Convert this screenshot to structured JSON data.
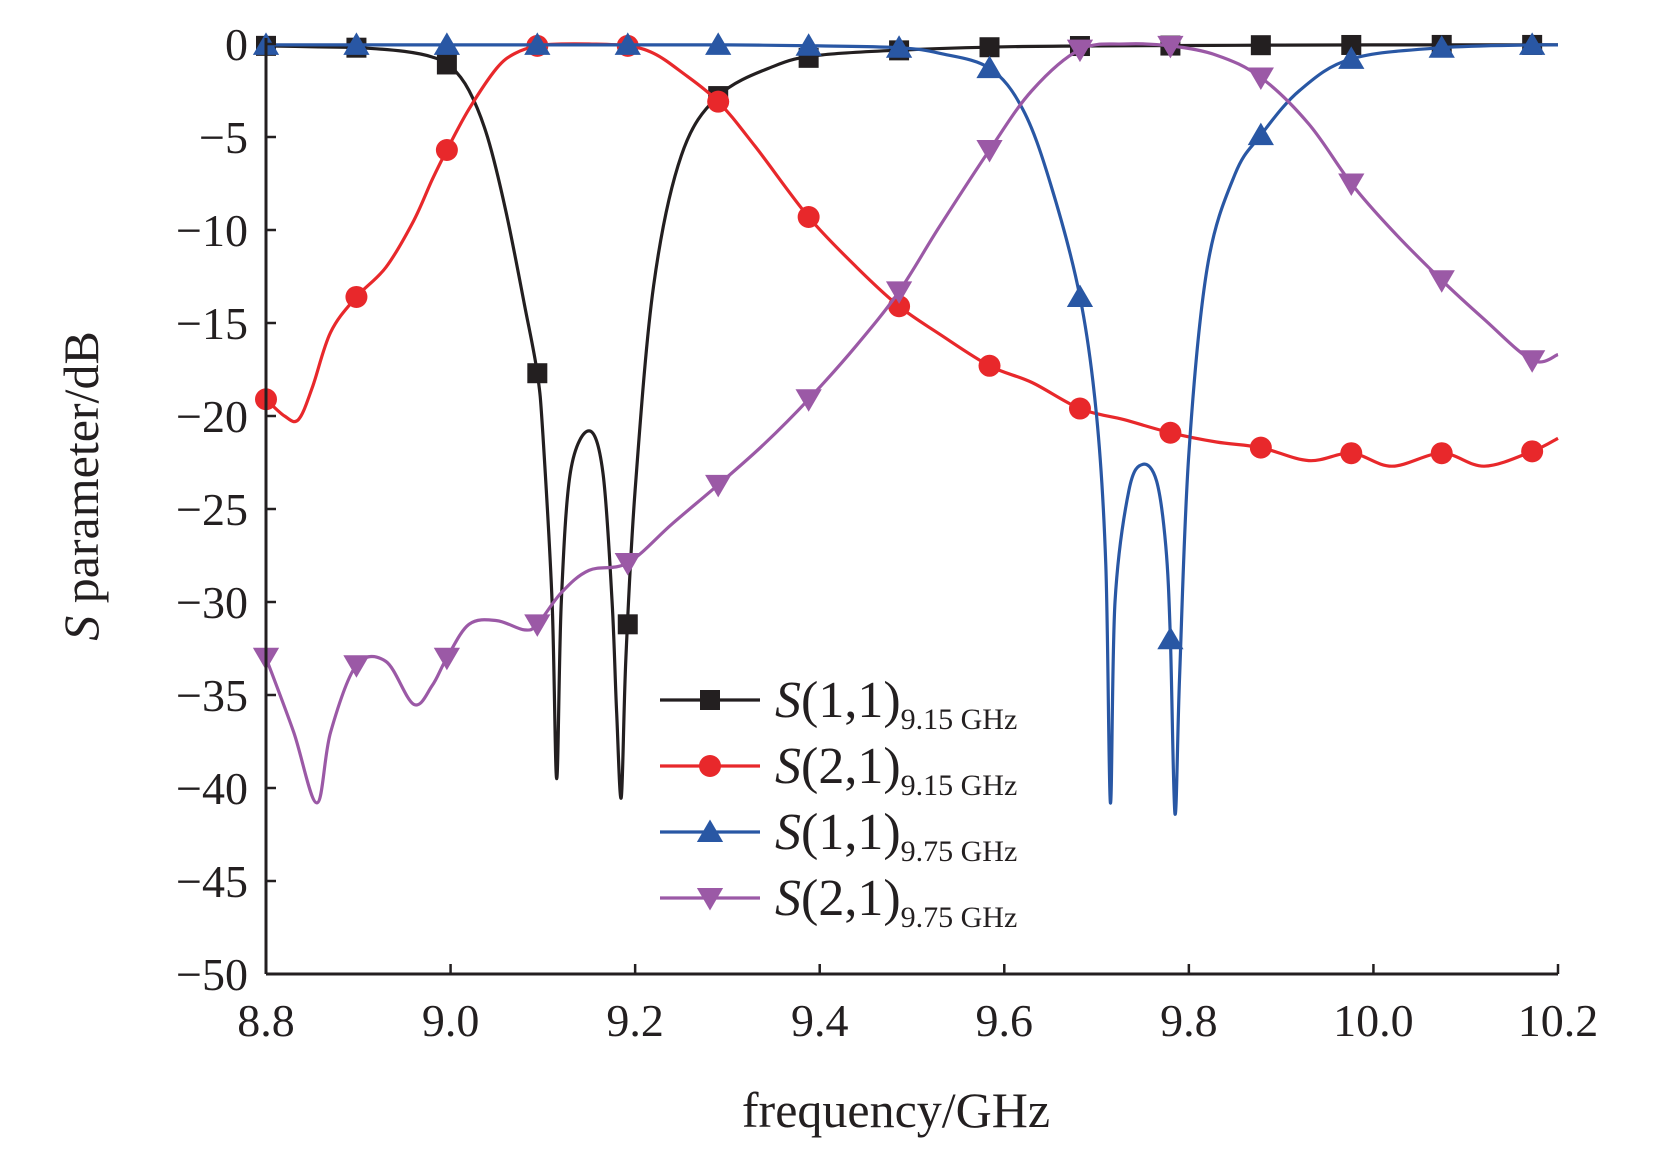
{
  "chart_data": {
    "type": "line",
    "title": "",
    "xlabel": "frequency/GHz",
    "ylabel_prefix": "S",
    "ylabel": " parameter/dB",
    "xlim": [
      8.8,
      10.2
    ],
    "ylim": [
      -50,
      0
    ],
    "xticks": [
      "8.8",
      "9.0",
      "9.2",
      "9.4",
      "9.6",
      "9.8",
      "10.0",
      "10.2"
    ],
    "xtick_values": [
      8.8,
      9.0,
      9.2,
      9.4,
      9.6,
      9.8,
      10.0,
      10.2
    ],
    "yticks": [
      "0",
      "−5",
      "−10",
      "−15",
      "−20",
      "−25",
      "−30",
      "−35",
      "−40",
      "−45",
      "−50"
    ],
    "ytick_values": [
      0,
      -5,
      -10,
      -15,
      -20,
      -25,
      -30,
      -35,
      -40,
      -45,
      -50
    ],
    "grid": false,
    "legend_position": "bottom-center",
    "series": [
      {
        "name": "S(1,1)",
        "name_main": "S(1,1)",
        "name_sub": "9.15 GHz",
        "color": "#231f20",
        "marker": "square",
        "markers_x": [
          8.8,
          8.898,
          8.996,
          9.094,
          9.192,
          9.29,
          9.388,
          9.486,
          9.584,
          9.682,
          9.78,
          9.878,
          9.976,
          10.074,
          10.172
        ],
        "x": [
          8.8,
          8.85,
          8.9,
          8.95,
          8.98,
          9.0,
          9.02,
          9.04,
          9.06,
          9.08,
          9.094,
          9.1,
          9.11,
          9.115,
          9.12,
          9.13,
          9.15,
          9.165,
          9.175,
          9.18,
          9.185,
          9.19,
          9.2,
          9.22,
          9.25,
          9.29,
          9.35,
          9.4,
          9.5,
          9.6,
          9.7,
          9.8,
          9.9,
          10.0,
          10.1,
          10.2
        ],
        "y": [
          -0.1,
          -0.15,
          -0.2,
          -0.4,
          -0.7,
          -1.2,
          -2.5,
          -5,
          -9,
          -14,
          -17.7,
          -21,
          -30,
          -39.5,
          -30,
          -23,
          -20.8,
          -23,
          -30,
          -36,
          -40.5,
          -33,
          -24,
          -13,
          -6,
          -2.8,
          -1.2,
          -0.6,
          -0.3,
          -0.15,
          -0.1,
          -0.08,
          -0.06,
          -0.05,
          -0.05,
          -0.05
        ]
      },
      {
        "name": "S(2,1)",
        "name_main": "S(2,1)",
        "name_sub": "9.15 GHz",
        "color": "#e8282b",
        "marker": "circle",
        "markers_x": [
          8.8,
          8.898,
          8.996,
          9.094,
          9.192,
          9.29,
          9.388,
          9.486,
          9.584,
          9.682,
          9.78,
          9.878,
          9.976,
          10.074,
          10.172
        ],
        "x": [
          8.8,
          8.82,
          8.835,
          8.85,
          8.87,
          8.898,
          8.93,
          8.96,
          8.98,
          8.996,
          9.02,
          9.05,
          9.07,
          9.094,
          9.12,
          9.15,
          9.192,
          9.22,
          9.25,
          9.29,
          9.33,
          9.388,
          9.44,
          9.486,
          9.53,
          9.584,
          9.63,
          9.682,
          9.73,
          9.78,
          9.83,
          9.878,
          9.93,
          9.976,
          10.02,
          10.074,
          10.12,
          10.172,
          10.2
        ],
        "y": [
          -19.1,
          -20,
          -20.2,
          -18.5,
          -15.5,
          -13.6,
          -12,
          -9.5,
          -7.3,
          -5.7,
          -3.5,
          -1.3,
          -0.5,
          -0.1,
          0,
          0,
          -0.1,
          -0.5,
          -1.5,
          -3.1,
          -5.5,
          -9.3,
          -12,
          -14.1,
          -15.6,
          -17.3,
          -18.2,
          -19.6,
          -20.2,
          -20.9,
          -21.4,
          -21.7,
          -22.4,
          -22,
          -22.7,
          -22,
          -22.7,
          -21.9,
          -21.2
        ]
      },
      {
        "name": "S(1,1)",
        "name_main": "S(1,1)",
        "name_sub": "9.75 GHz",
        "color": "#2957a4",
        "marker": "triangle-up",
        "markers_x": [
          8.8,
          8.898,
          8.996,
          9.094,
          9.192,
          9.29,
          9.388,
          9.486,
          9.584,
          9.682,
          9.78,
          9.878,
          9.976,
          10.074,
          10.172
        ],
        "x": [
          8.8,
          8.9,
          9.0,
          9.1,
          9.2,
          9.3,
          9.4,
          9.486,
          9.53,
          9.584,
          9.62,
          9.65,
          9.682,
          9.7,
          9.71,
          9.715,
          9.72,
          9.735,
          9.75,
          9.765,
          9.775,
          9.78,
          9.785,
          9.79,
          9.8,
          9.82,
          9.85,
          9.878,
          9.92,
          9.976,
          10.074,
          10.172,
          10.2
        ],
        "y": [
          -0.05,
          -0.05,
          -0.05,
          -0.05,
          -0.05,
          -0.05,
          -0.1,
          -0.2,
          -0.5,
          -1.3,
          -3.5,
          -7.5,
          -13.6,
          -20,
          -28,
          -40.8,
          -30,
          -24,
          -22.6,
          -23.5,
          -27,
          -32,
          -41.4,
          -34,
          -22,
          -12,
          -7,
          -4.9,
          -2.5,
          -0.8,
          -0.2,
          -0.05,
          -0.05
        ]
      },
      {
        "name": "S(2,1)",
        "name_main": "S(2,1)",
        "name_sub": "9.75 GHz",
        "color": "#9b59a6",
        "marker": "triangle-down",
        "markers_x": [
          8.8,
          8.898,
          8.996,
          9.094,
          9.192,
          9.29,
          9.388,
          9.486,
          9.584,
          9.682,
          9.78,
          9.878,
          9.976,
          10.074,
          10.172
        ],
        "x": [
          8.8,
          8.83,
          8.855,
          8.87,
          8.898,
          8.93,
          8.96,
          8.98,
          8.996,
          9.02,
          9.05,
          9.08,
          9.094,
          9.12,
          9.15,
          9.192,
          9.24,
          9.29,
          9.34,
          9.388,
          9.44,
          9.486,
          9.53,
          9.584,
          9.63,
          9.682,
          9.73,
          9.78,
          9.83,
          9.878,
          9.93,
          9.976,
          10.02,
          10.074,
          10.12,
          10.172,
          10.2
        ],
        "y": [
          -33,
          -37,
          -40.8,
          -37,
          -33.4,
          -33.2,
          -35.5,
          -34.5,
          -33,
          -31.2,
          -31,
          -31.5,
          -31.2,
          -29.5,
          -28.3,
          -27.9,
          -25.8,
          -23.7,
          -21.5,
          -19.1,
          -16.2,
          -13.3,
          -9.8,
          -5.7,
          -2.5,
          -0.3,
          0,
          -0.1,
          -0.6,
          -1.8,
          -4.3,
          -7.5,
          -10,
          -12.7,
          -14.8,
          -17,
          -16.7
        ]
      }
    ]
  }
}
